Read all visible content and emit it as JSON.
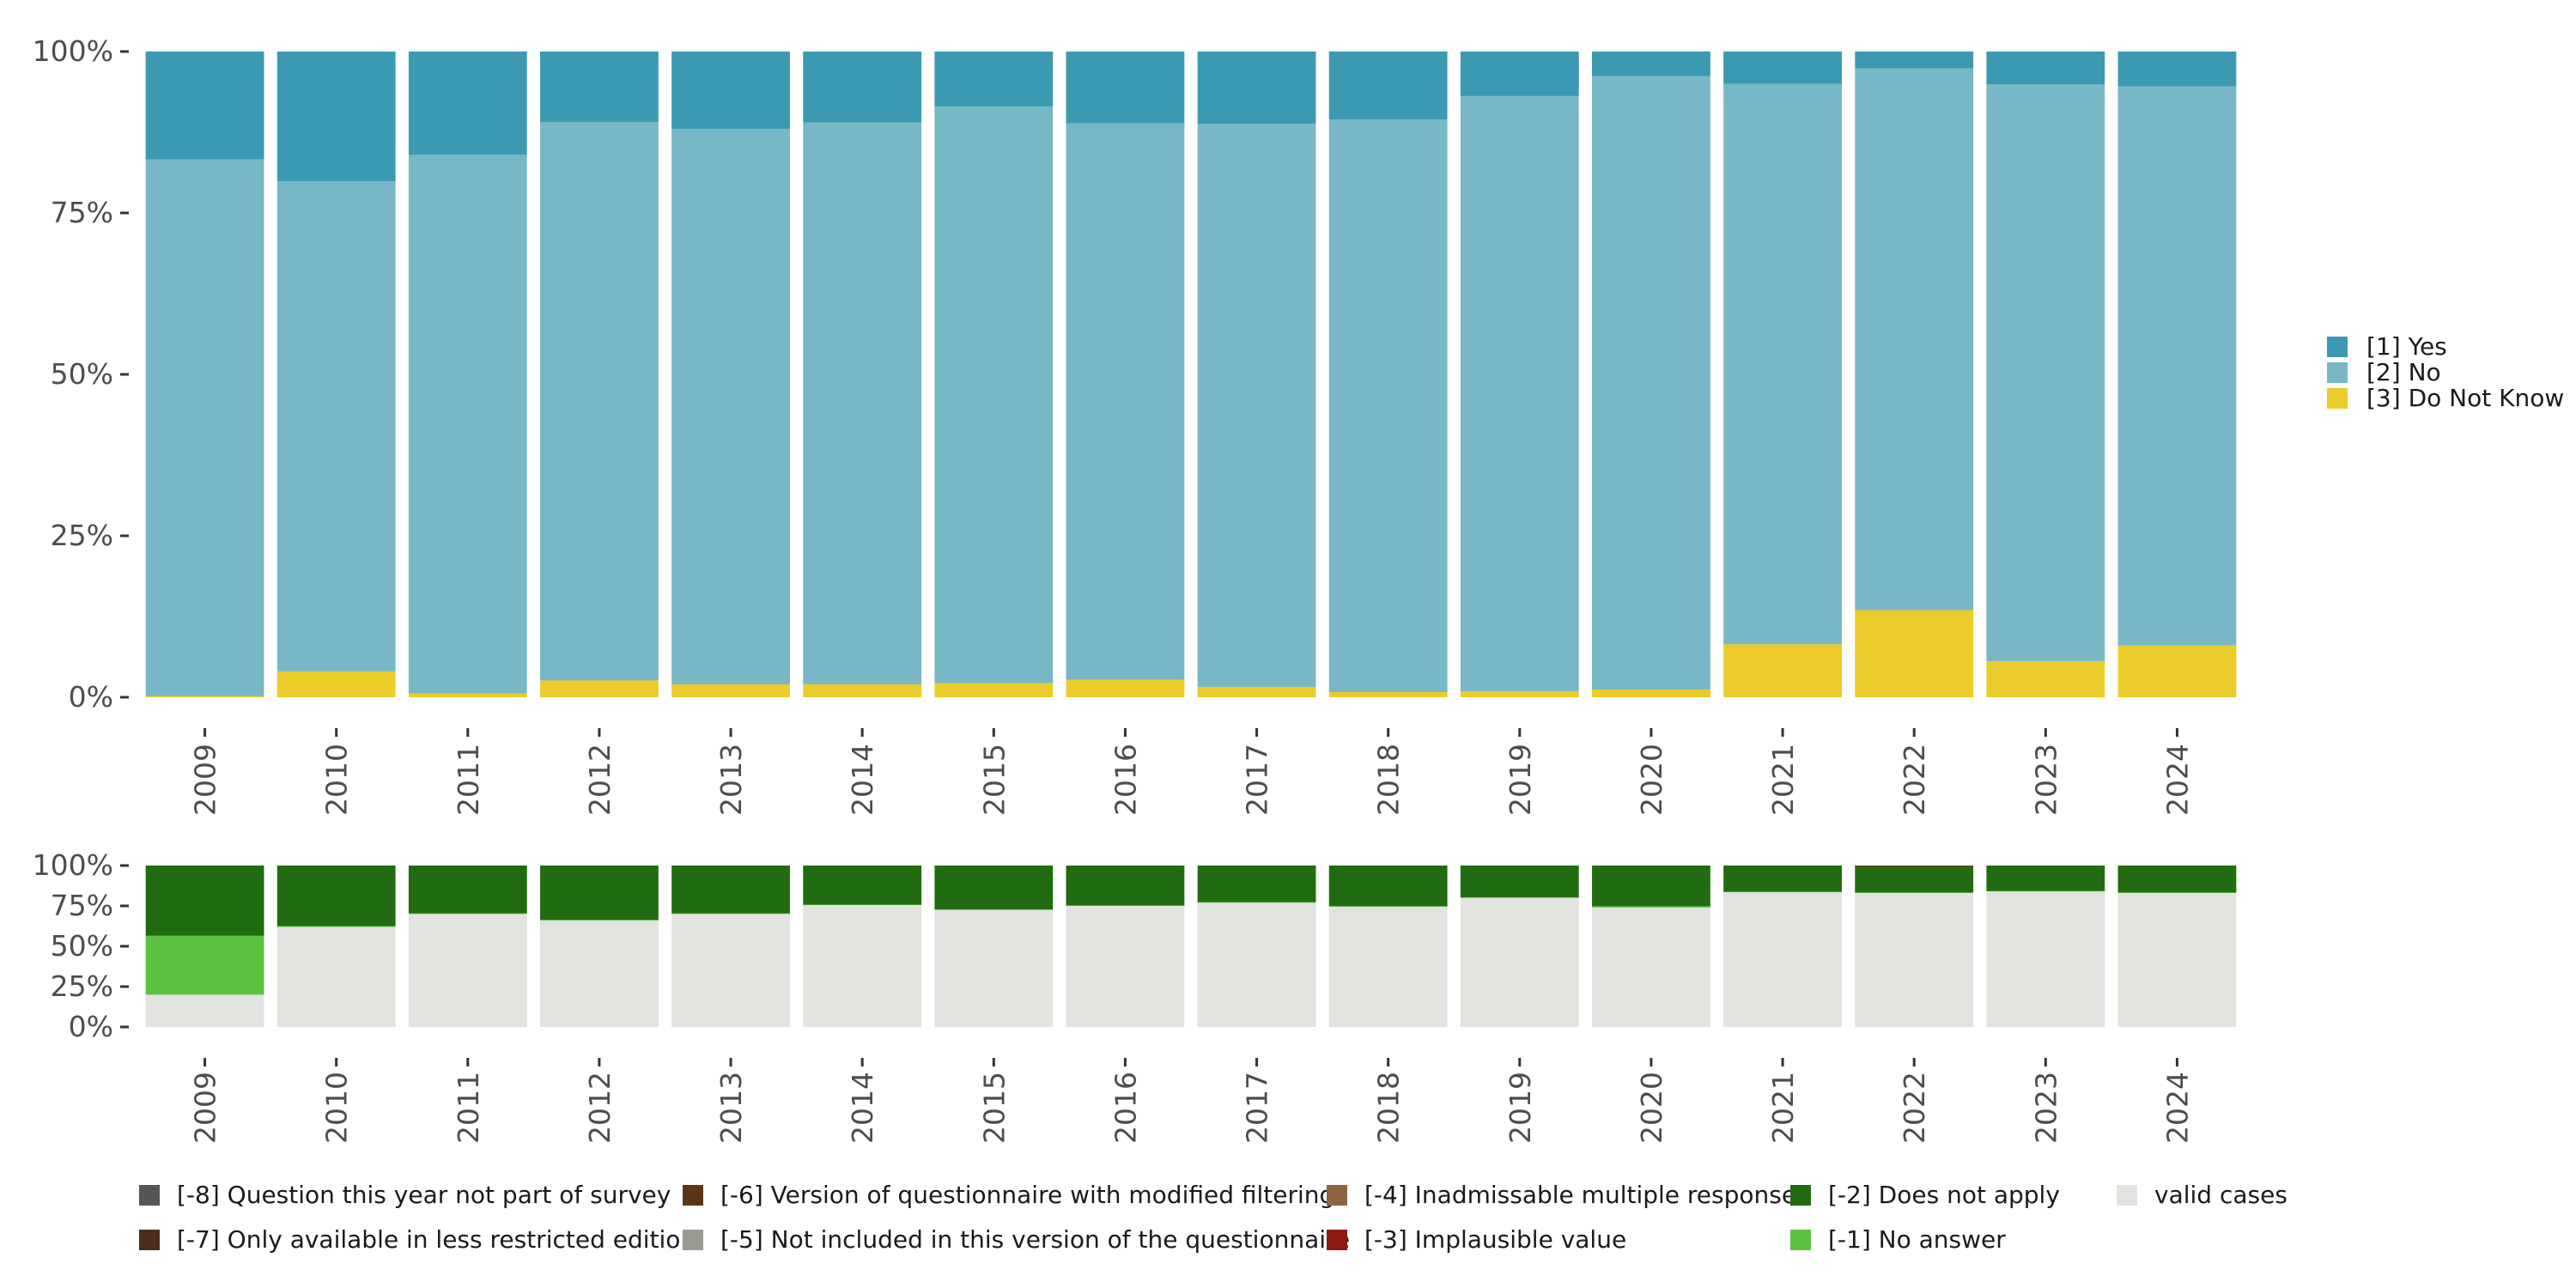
{
  "chart_data": [
    {
      "type": "bar",
      "stacked": true,
      "percent": true,
      "categories": [
        "2009",
        "2010",
        "2011",
        "2012",
        "2013",
        "2014",
        "2015",
        "2016",
        "2017",
        "2018",
        "2019",
        "2020",
        "2021",
        "2022",
        "2023",
        "2024"
      ],
      "ylim": [
        0,
        100
      ],
      "yticks": [
        "0%",
        "25%",
        "50%",
        "75%",
        "100%"
      ],
      "xlabel": "",
      "ylabel": "",
      "legend_position": "right",
      "series": [
        {
          "name": "[3] Do Not Know",
          "color": "#ebcc2a",
          "values": [
            0.2,
            4.0,
            0.6,
            2.6,
            2.0,
            2.0,
            2.2,
            2.7,
            1.6,
            0.8,
            0.9,
            1.2,
            8.2,
            13.5,
            5.6,
            8.0
          ]
        },
        {
          "name": "[2] No",
          "color": "#78b7c5",
          "values": [
            83.1,
            75.9,
            83.4,
            86.5,
            86.0,
            87.0,
            89.3,
            86.2,
            87.2,
            88.7,
            92.2,
            95.0,
            86.8,
            83.9,
            89.3,
            86.6
          ]
        },
        {
          "name": "[1] Yes",
          "color": "#3b9ab2",
          "values": [
            16.7,
            20.1,
            16.0,
            10.9,
            12.0,
            11.0,
            8.5,
            11.1,
            11.2,
            10.5,
            6.9,
            3.8,
            5.0,
            2.6,
            5.1,
            5.4
          ]
        }
      ]
    },
    {
      "type": "bar",
      "stacked": true,
      "percent": true,
      "categories": [
        "2009",
        "2010",
        "2011",
        "2012",
        "2013",
        "2014",
        "2015",
        "2016",
        "2017",
        "2018",
        "2019",
        "2020",
        "2021",
        "2022",
        "2023",
        "2024"
      ],
      "ylim": [
        0,
        100
      ],
      "yticks": [
        "0%",
        "25%",
        "50%",
        "75%",
        "100%"
      ],
      "xlabel": "",
      "ylabel": "",
      "legend_position": "bottom",
      "series": [
        {
          "name": "valid cases",
          "color": "#e1e3df",
          "values": [
            20.0,
            62.0,
            70.0,
            66.0,
            70.0,
            75.5,
            72.5,
            75.0,
            77.0,
            74.5,
            80.0,
            74.0,
            83.5,
            83.0,
            84.0,
            83.0
          ]
        },
        {
          "name": "[-1] No answer",
          "color": "#5bc13f",
          "values": [
            36.5,
            0.5,
            0.3,
            0.3,
            0.3,
            0.3,
            0.3,
            0.3,
            0.3,
            0.3,
            0.3,
            0.8,
            0.3,
            0.3,
            0.3,
            0.3
          ]
        },
        {
          "name": "[-2] Does not apply",
          "color": "#216c10",
          "values": [
            43.5,
            37.5,
            29.7,
            33.7,
            29.7,
            24.2,
            27.2,
            24.7,
            22.7,
            25.2,
            19.7,
            25.2,
            16.2,
            16.2,
            15.7,
            16.7
          ]
        },
        {
          "name": "[-3] Implausible value",
          "color": "#8f1a13",
          "values": [
            0,
            0,
            0,
            0,
            0,
            0,
            0,
            0,
            0,
            0,
            0,
            0,
            0,
            0.5,
            0,
            0
          ]
        },
        {
          "name": "[-4] Inadmissable multiple response",
          "color": "#8c6440",
          "values": [
            0,
            0,
            0,
            0,
            0,
            0,
            0,
            0,
            0,
            0,
            0,
            0,
            0,
            0,
            0,
            0
          ]
        },
        {
          "name": "[-5] Not included in this version of the questionnaire",
          "color": "#9a9a93",
          "values": [
            0,
            0,
            0,
            0,
            0,
            0,
            0,
            0,
            0,
            0,
            0,
            0,
            0,
            0,
            0,
            0
          ]
        },
        {
          "name": "[-6] Version of questionnaire with modified filtering",
          "color": "#5a3617",
          "values": [
            0,
            0,
            0,
            0,
            0,
            0,
            0,
            0,
            0,
            0,
            0,
            0,
            0,
            0,
            0,
            0
          ]
        },
        {
          "name": "[-7] Only available in less restricted edition",
          "color": "#4a2e1a",
          "values": [
            0,
            0,
            0,
            0,
            0,
            0,
            0,
            0,
            0,
            0,
            0,
            0,
            0,
            0,
            0,
            0
          ]
        },
        {
          "name": "[-8] Question this year not part of survey",
          "color": "#545756",
          "values": [
            0,
            0,
            0,
            0,
            0,
            0,
            0,
            0,
            0,
            0,
            0,
            0,
            0,
            0,
            0,
            0
          ]
        }
      ]
    }
  ],
  "legend_top": [
    {
      "label": "[1] Yes",
      "color": "#3b9ab2"
    },
    {
      "label": "[2] No",
      "color": "#78b7c5"
    },
    {
      "label": "[3] Do Not Know",
      "color": "#ebcc2a"
    }
  ],
  "legend_bottom": [
    {
      "label": "[-8] Question this year not part of survey",
      "color": "#545756"
    },
    {
      "label": "[-7] Only available in less restricted edition",
      "color": "#4a2e1a"
    },
    {
      "label": "[-6] Version of questionnaire with modified filtering",
      "color": "#5a3617"
    },
    {
      "label": "[-5] Not included in this version of the questionnaire",
      "color": "#9a9a93"
    },
    {
      "label": "[-4] Inadmissable multiple response",
      "color": "#8c6440"
    },
    {
      "label": "[-3] Implausible value",
      "color": "#8f1a13"
    },
    {
      "label": "[-2] Does not apply",
      "color": "#216c10"
    },
    {
      "label": "[-1] No answer",
      "color": "#5bc13f"
    },
    {
      "label": "valid cases",
      "color": "#e1e3df"
    }
  ]
}
